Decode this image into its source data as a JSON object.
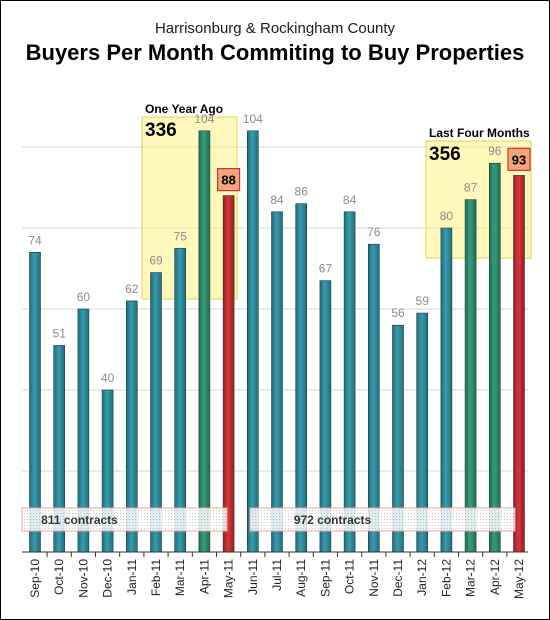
{
  "chart_data": {
    "type": "bar",
    "subtitle": "Harrisonburg & Rockingham County",
    "title": "Buyers Per Month Commiting to Buy Properties",
    "categories": [
      "Sep-10",
      "Oct-10",
      "Nov-10",
      "Dec-10",
      "Jan-11",
      "Feb-11",
      "Mar-11",
      "Apr-11",
      "May-11",
      "Jun-11",
      "Jul-11",
      "Aug-11",
      "Sep-11",
      "Oct-11",
      "Nov-11",
      "Dec-11",
      "Jan-12",
      "Feb-12",
      "Mar-12",
      "Apr-12",
      "May-12"
    ],
    "values": [
      74,
      51,
      60,
      40,
      62,
      69,
      75,
      104,
      88,
      104,
      84,
      86,
      67,
      84,
      76,
      56,
      59,
      80,
      87,
      96,
      93
    ],
    "bar_colors": [
      "teal",
      "teal",
      "teal",
      "teal",
      "teal",
      "teal",
      "teal",
      "green",
      "red",
      "teal",
      "teal",
      "teal",
      "teal",
      "teal",
      "teal",
      "teal",
      "teal",
      "teal",
      "green",
      "green",
      "red"
    ],
    "colors": {
      "teal": "#2a8a9a",
      "green": "#2e8a6e",
      "red": "#c0282a",
      "highlight": "#fff176",
      "label_box": "#f4a47a"
    },
    "ylim": [
      0,
      115
    ],
    "grid": true,
    "highlight_boxes": [
      {
        "label": "One Year Ago",
        "total": "336",
        "categories": [
          "Feb-11",
          "Mar-11",
          "Apr-11",
          "May-11"
        ]
      },
      {
        "label": "Last Four Months",
        "total": "356",
        "categories": [
          "Feb-12",
          "Mar-12",
          "Apr-12",
          "May-12"
        ]
      }
    ],
    "contract_bands": [
      {
        "text": "811 contracts",
        "categories": [
          "Sep-10",
          "Oct-10",
          "Nov-10",
          "Dec-10",
          "Jan-11",
          "Feb-11",
          "Mar-11",
          "Apr-11"
        ]
      },
      {
        "text": "972 contracts",
        "categories": [
          "Jun-11",
          "Jul-11",
          "Aug-11",
          "Sep-11",
          "Oct-11",
          "Nov-11",
          "Dec-11",
          "Jan-12",
          "Feb-12",
          "Mar-12",
          "Apr-12",
          "May-12"
        ]
      }
    ]
  }
}
